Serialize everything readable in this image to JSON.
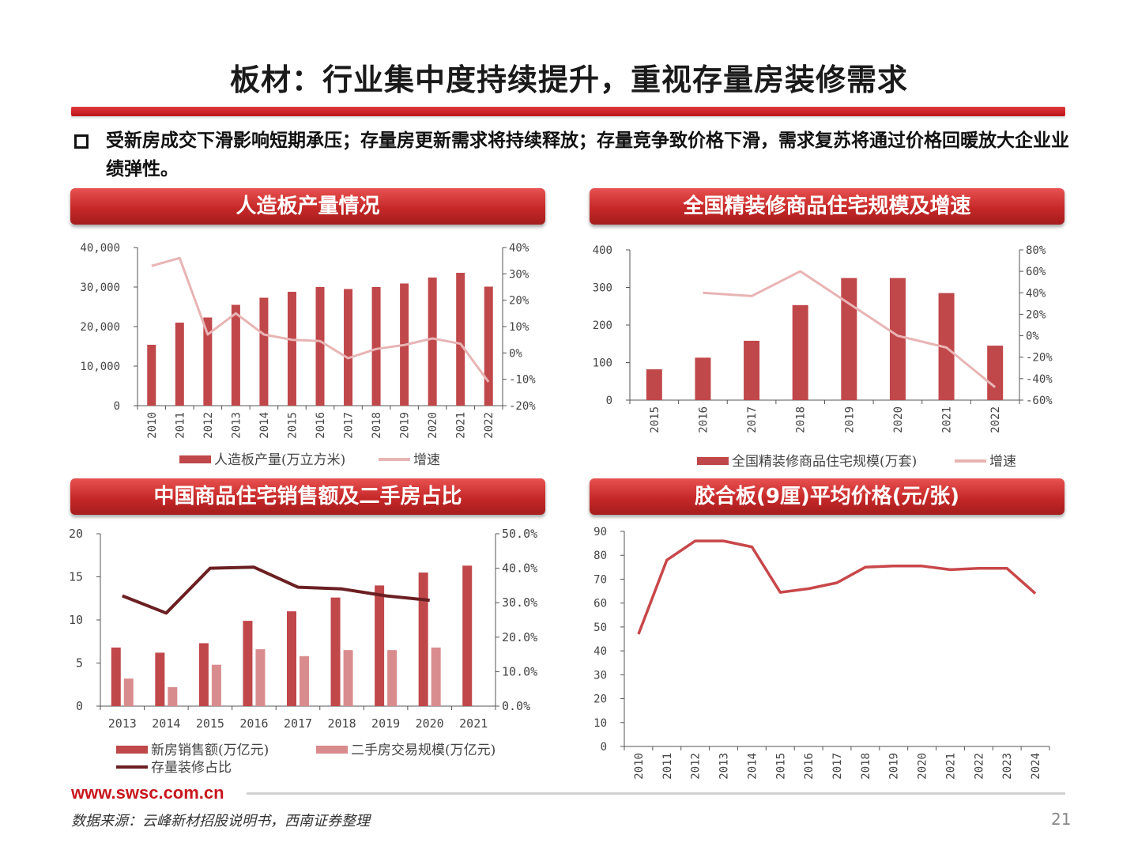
{
  "page": {
    "title": "板材：行业集中度持续提升，重视存量房装修需求",
    "bullet": "受新房成交下滑影响短期承压；存量房更新需求将持续释放；存量竞争致价格下滑，需求复苏将通过价格回暖放大企业业绩弹性。",
    "footer_url": "www.swsc.com.cn",
    "source": "数据来源：云峰新材招股说明书，西南证券整理",
    "page_number": "21"
  },
  "colors": {
    "bar_dark": "#c0474a",
    "bar_light": "#d98c8e",
    "line_pink": "#e8b4b4",
    "line_dark": "#6b1f22",
    "line_red": "#c8474a",
    "title_red": "#c62828"
  },
  "chart_data": [
    {
      "id": "panel1",
      "type": "bar",
      "title": "人造板产量情况",
      "categories": [
        "2010",
        "2011",
        "2012",
        "2013",
        "2014",
        "2015",
        "2016",
        "2017",
        "2018",
        "2019",
        "2020",
        "2021",
        "2022"
      ],
      "series": [
        {
          "name": "人造板产量(万立方米)",
          "kind": "bar",
          "axis": "left",
          "values": [
            15400,
            21000,
            22300,
            25500,
            27300,
            28800,
            30000,
            29500,
            30000,
            30900,
            32400,
            33600,
            30100
          ]
        },
        {
          "name": "增速",
          "kind": "line",
          "axis": "right",
          "values": [
            33,
            36,
            7,
            15,
            7,
            5,
            4.5,
            -2,
            1.5,
            3,
            5.5,
            3.5,
            -11
          ]
        }
      ],
      "y_left": {
        "min": 0,
        "max": 40000,
        "ticks": [
          "0",
          "10,000",
          "20,000",
          "30,000",
          "40,000"
        ]
      },
      "y_right": {
        "min": -20,
        "max": 40,
        "ticks": [
          "-20%",
          "-10%",
          "0%",
          "10%",
          "20%",
          "30%",
          "40%"
        ]
      },
      "legend": "bottom"
    },
    {
      "id": "panel2",
      "type": "bar",
      "title": "全国精装修商品住宅规模及增速",
      "categories": [
        "2015",
        "2016",
        "2017",
        "2018",
        "2019",
        "2020",
        "2021",
        "2022"
      ],
      "series": [
        {
          "name": "全国精装修商品住宅规模(万套)",
          "kind": "bar",
          "axis": "left",
          "values": [
            82,
            113,
            158,
            253,
            325,
            325,
            285,
            145
          ]
        },
        {
          "name": "增速",
          "kind": "line",
          "axis": "right",
          "values": [
            null,
            40,
            37,
            60,
            30,
            0,
            -11,
            -48
          ]
        }
      ],
      "y_left": {
        "min": 0,
        "max": 400,
        "ticks": [
          "0",
          "100",
          "200",
          "300",
          "400"
        ]
      },
      "y_right": {
        "min": -60,
        "max": 80,
        "ticks": [
          "-60%",
          "-40%",
          "-20%",
          "0%",
          "20%",
          "40%",
          "60%",
          "80%"
        ]
      },
      "legend": "bottom"
    },
    {
      "id": "panel3",
      "type": "bar",
      "title": "中国商品住宅销售额及二手房占比",
      "categories": [
        "2013",
        "2014",
        "2015",
        "2016",
        "2017",
        "2018",
        "2019",
        "2020",
        "2021"
      ],
      "series": [
        {
          "name": "新房销售额(万亿元)",
          "kind": "bar",
          "axis": "left",
          "color": "bar_dark",
          "values": [
            6.8,
            6.2,
            7.3,
            9.9,
            11.0,
            12.6,
            14.0,
            15.5,
            16.3
          ]
        },
        {
          "name": "二手房交易规模(万亿元)",
          "kind": "bar",
          "axis": "left",
          "color": "bar_light",
          "values": [
            3.2,
            2.2,
            4.8,
            6.6,
            5.8,
            6.5,
            6.5,
            6.8,
            null
          ]
        },
        {
          "name": "存量装修占比",
          "kind": "line",
          "axis": "right",
          "values": [
            32,
            27,
            40,
            40.3,
            34.5,
            34,
            32,
            30.7,
            null
          ]
        }
      ],
      "y_left": {
        "min": 0,
        "max": 20,
        "ticks": [
          "0",
          "5",
          "10",
          "15",
          "20"
        ]
      },
      "y_right": {
        "min": 0,
        "max": 50,
        "ticks": [
          "0.0%",
          "10.0%",
          "20.0%",
          "30.0%",
          "40.0%",
          "50.0%"
        ]
      },
      "legend": "bottom"
    },
    {
      "id": "panel4",
      "type": "line",
      "title": "胶合板(9厘)平均价格(元/张)",
      "categories": [
        "2010",
        "2011",
        "2012",
        "2013",
        "2014",
        "2015",
        "2016",
        "2017",
        "2018",
        "2019",
        "2020",
        "2021",
        "2022",
        "2023",
        "2024"
      ],
      "series": [
        {
          "name": "",
          "kind": "line",
          "axis": "left",
          "values": [
            47,
            78,
            86,
            86,
            83.5,
            64.5,
            66,
            68.5,
            75,
            75.5,
            75.5,
            74,
            74.5,
            74.5,
            64
          ]
        }
      ],
      "y_left": {
        "min": 0,
        "max": 90,
        "ticks": [
          "0",
          "10",
          "20",
          "30",
          "40",
          "50",
          "60",
          "70",
          "80",
          "90"
        ]
      },
      "legend": "none"
    }
  ]
}
